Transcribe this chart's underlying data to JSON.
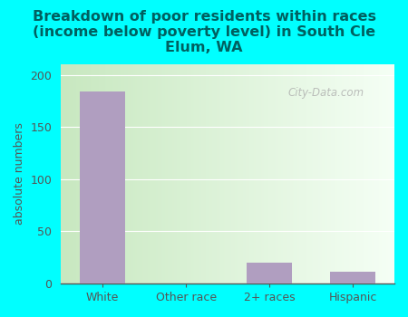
{
  "title": "Breakdown of poor residents within races\n(income below poverty level) in South Cle\nElum, WA",
  "categories": [
    "White",
    "Other race",
    "2+ races",
    "Hispanic"
  ],
  "values": [
    184,
    0,
    20,
    11
  ],
  "bar_color": "#b09ec0",
  "ylabel": "absolute numbers",
  "ylim": [
    0,
    210
  ],
  "yticks": [
    0,
    50,
    100,
    150,
    200
  ],
  "background_color": "#00ffff",
  "plot_bg_left": "#c8e8c0",
  "plot_bg_right": "#f0faf0",
  "title_color": "#006060",
  "axis_color": "#555555",
  "watermark": "City-Data.com",
  "title_fontsize": 11.5,
  "ylabel_fontsize": 9,
  "tick_fontsize": 9
}
